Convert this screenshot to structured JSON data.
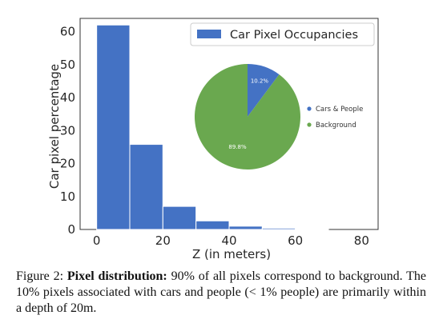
{
  "chart_data": [
    {
      "type": "bar",
      "legend": [
        "Car Pixel Occupancies"
      ],
      "legend_placement": "top-right",
      "xlabel": "Z (in meters)",
      "ylabel": "Car pixel percentage",
      "xlim": [
        -5,
        85
      ],
      "ylim": [
        0,
        64
      ],
      "xticks": [
        "0",
        "20",
        "40",
        "60",
        "80"
      ],
      "yticks": [
        "0",
        "10",
        "20",
        "30",
        "40",
        "50",
        "60"
      ],
      "bin_edges": [
        0,
        10,
        20,
        30,
        40,
        50,
        60,
        70
      ],
      "values": [
        62,
        25.8,
        7,
        2.6,
        1,
        0.4,
        0.1
      ],
      "color": "#4472c4"
    },
    {
      "type": "pie",
      "labels": [
        "Cars & People",
        "Background"
      ],
      "values": [
        10.2,
        89.8
      ],
      "slice_labels": [
        "10.2%",
        "89.8%"
      ],
      "colors": [
        "#4472c4",
        "#6aa84f"
      ],
      "legend_placement": "right"
    }
  ],
  "caption": {
    "prefix": "Figure 2:",
    "bold": "Pixel distribution:",
    "text": "90% of all pixels correspond to background. The 10% pixels associated with cars and people (< 1% people) are primarily within a depth of 20m."
  }
}
